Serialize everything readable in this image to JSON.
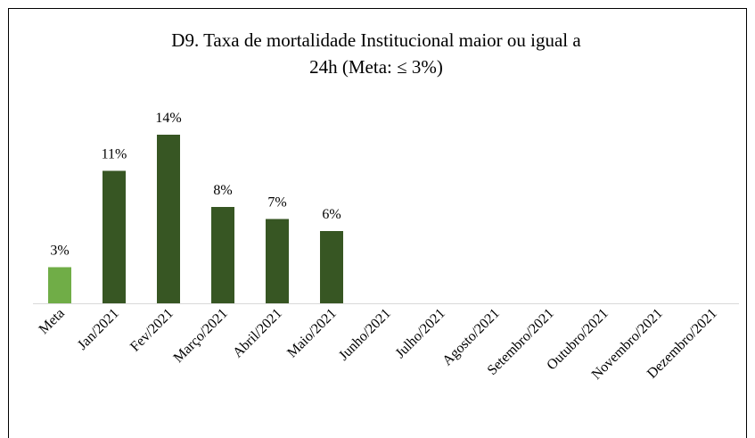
{
  "chart_data": {
    "type": "bar",
    "title": [
      "D9. Taxa de mortalidade Institucional maior ou igual a",
      "24h    (Meta: ≤ 3%)"
    ],
    "categories": [
      "Meta",
      "Jan/2021",
      "Fev/2021",
      "Março/2021",
      "Abril/2021",
      "Maio/2021",
      "Junho/2021",
      "Julho/2021",
      "Agosto/2021",
      "Setembro/2021",
      "Outubro/2021",
      "Novembro/2021",
      "Dezembro/2021"
    ],
    "values": [
      3,
      11,
      14,
      8,
      7,
      6,
      null,
      null,
      null,
      null,
      null,
      null,
      null
    ],
    "value_labels": [
      "3%",
      "11%",
      "14%",
      "8%",
      "7%",
      "6%",
      null,
      null,
      null,
      null,
      null,
      null,
      null
    ],
    "colors": [
      "#70ad47",
      "#375623",
      "#375623",
      "#375623",
      "#375623",
      "#375623",
      "#375623",
      "#375623",
      "#375623",
      "#375623",
      "#375623",
      "#375623",
      "#375623"
    ]
  }
}
